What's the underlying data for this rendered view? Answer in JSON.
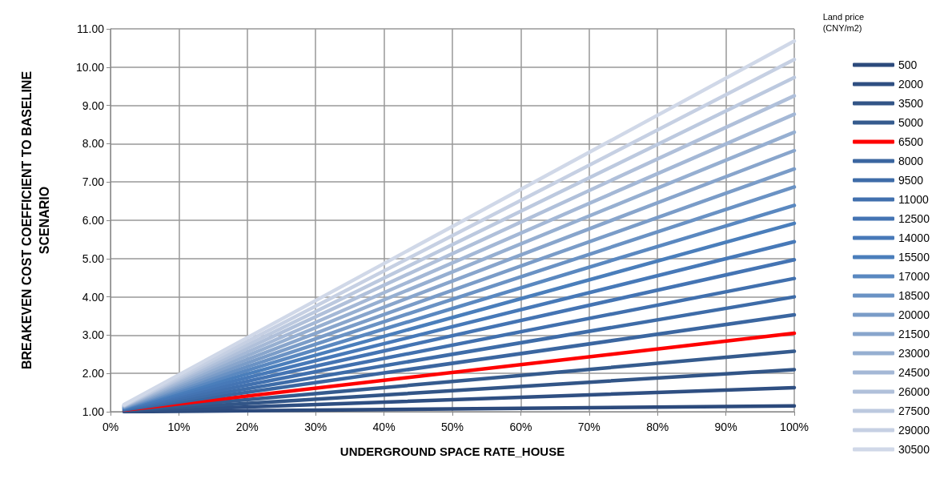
{
  "chart_data": {
    "type": "line",
    "xlabel": "UNDERGROUND SPACE RATE_HOUSE",
    "ylabel": "BREAKEVEN COST COEFFICIENT TO BASELINE\nSCENARIO",
    "legend_title": "Land price\n(CNY/m2)",
    "x": [
      0.02,
      1
    ],
    "xlim": [
      0,
      1
    ],
    "xticks": [
      {
        "value": 0,
        "label": "0%"
      },
      {
        "value": 0.1,
        "label": "10%"
      },
      {
        "value": 0.2,
        "label": "20%"
      },
      {
        "value": 0.3,
        "label": "30%"
      },
      {
        "value": 0.4,
        "label": "40%"
      },
      {
        "value": 0.5,
        "label": "50%"
      },
      {
        "value": 0.6,
        "label": "60%"
      },
      {
        "value": 0.7,
        "label": "70%"
      },
      {
        "value": 0.8,
        "label": "80%"
      },
      {
        "value": 0.9,
        "label": "90%"
      },
      {
        "value": 1,
        "label": "100%"
      }
    ],
    "ylim": [
      1,
      11
    ],
    "yticks": [
      {
        "value": 1,
        "label": "1.00"
      },
      {
        "value": 2,
        "label": "2.00"
      },
      {
        "value": 3,
        "label": "3.00"
      },
      {
        "value": 4,
        "label": "4.00"
      },
      {
        "value": 5,
        "label": "5.00"
      },
      {
        "value": 6,
        "label": "6.00"
      },
      {
        "value": 7,
        "label": "7.00"
      },
      {
        "value": 8,
        "label": "8.00"
      },
      {
        "value": 9,
        "label": "9.00"
      },
      {
        "value": 10,
        "label": "10.00"
      },
      {
        "value": 11,
        "label": "11.00"
      }
    ],
    "grid": true,
    "legend": "right",
    "marker": "none",
    "line_style": "solid",
    "series": [
      {
        "name": "500",
        "color": "#2c4a7c",
        "values": [
          1.0,
          1.15
        ]
      },
      {
        "name": "2000",
        "color": "#2f4f82",
        "values": [
          1.01,
          1.63
        ]
      },
      {
        "name": "3500",
        "color": "#325587",
        "values": [
          1.02,
          2.1
        ]
      },
      {
        "name": "5000",
        "color": "#355b8e",
        "values": [
          1.03,
          2.58
        ]
      },
      {
        "name": "6500",
        "color": "#ff0000",
        "values": [
          1.04,
          3.05
        ]
      },
      {
        "name": "8000",
        "color": "#3b66a0",
        "values": [
          1.05,
          3.53
        ]
      },
      {
        "name": "9500",
        "color": "#3e6ca8",
        "values": [
          1.06,
          4.0
        ]
      },
      {
        "name": "11000",
        "color": "#4170ae",
        "values": [
          1.07,
          4.48
        ]
      },
      {
        "name": "12500",
        "color": "#4474b3",
        "values": [
          1.08,
          4.97
        ]
      },
      {
        "name": "14000",
        "color": "#4779b8",
        "values": [
          1.09,
          5.44
        ]
      },
      {
        "name": "15500",
        "color": "#4a7ebb",
        "values": [
          1.1,
          5.92
        ]
      },
      {
        "name": "17000",
        "color": "#5a88c0",
        "values": [
          1.11,
          6.39
        ]
      },
      {
        "name": "18500",
        "color": "#6a92c4",
        "values": [
          1.12,
          6.87
        ]
      },
      {
        "name": "20000",
        "color": "#7a9cc8",
        "values": [
          1.13,
          7.34
        ]
      },
      {
        "name": "21500",
        "color": "#88a5cc",
        "values": [
          1.14,
          7.82
        ]
      },
      {
        "name": "23000",
        "color": "#96afd1",
        "values": [
          1.15,
          8.3
        ]
      },
      {
        "name": "24500",
        "color": "#a4b8d6",
        "values": [
          1.16,
          8.77
        ]
      },
      {
        "name": "26000",
        "color": "#b0c0da",
        "values": [
          1.17,
          9.25
        ]
      },
      {
        "name": "27500",
        "color": "#bcc9df",
        "values": [
          1.17,
          9.73
        ]
      },
      {
        "name": "29000",
        "color": "#c6d0e3",
        "values": [
          1.18,
          10.2
        ]
      },
      {
        "name": "30500",
        "color": "#d0d8e8",
        "values": [
          1.19,
          10.68
        ]
      }
    ]
  }
}
